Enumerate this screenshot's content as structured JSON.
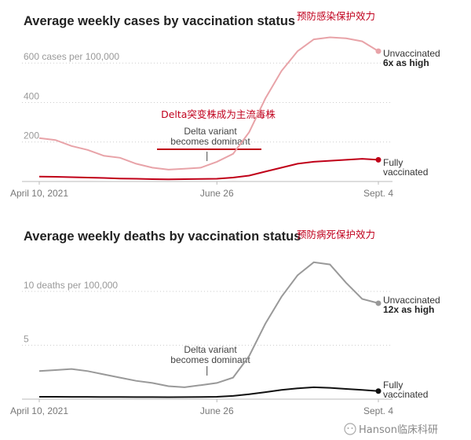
{
  "chart_data": [
    {
      "type": "line",
      "title": "Average weekly cases by vaccination status",
      "annotation_cn_top": "预防感染保护效力",
      "annotation_cn_delta": "Delta突变株成为主流毒株",
      "delta_annotation": [
        "Delta variant",
        "becomes dominant"
      ],
      "ylim": [
        0,
        760
      ],
      "y_ticks": [
        {
          "value": 200,
          "label": "200"
        },
        {
          "value": 400,
          "label": "400"
        },
        {
          "value": 600,
          "label": "600 cases per 100,000"
        }
      ],
      "x_ticks": [
        {
          "week": 0,
          "label": "April 10, 2021"
        },
        {
          "week": 11,
          "label": "June 26"
        },
        {
          "week": 21,
          "label": "Sept. 4"
        }
      ],
      "delta_week": 10,
      "series": [
        {
          "name": "Unvaccinated",
          "color": "#e8a3a8",
          "end_label": "Unvaccinated",
          "end_value_label": "6x as high",
          "values": [
            220,
            210,
            180,
            160,
            130,
            120,
            90,
            70,
            60,
            65,
            70,
            100,
            140,
            250,
            420,
            560,
            660,
            720,
            730,
            725,
            710,
            660
          ]
        },
        {
          "name": "Fully vaccinated",
          "color": "#c00018",
          "end_label": [
            "Fully",
            "vaccinated"
          ],
          "values": [
            25,
            24,
            22,
            20,
            18,
            15,
            14,
            12,
            11,
            12,
            13,
            14,
            20,
            30,
            50,
            70,
            90,
            100,
            105,
            110,
            115,
            110
          ]
        }
      ]
    },
    {
      "type": "line",
      "title": "Average weekly deaths by vaccination status",
      "annotation_cn_top": "预防病死保护效力",
      "delta_annotation": [
        "Delta variant",
        "becomes dominant"
      ],
      "ylim": [
        0,
        14
      ],
      "y_ticks": [
        {
          "value": 5,
          "label": "5"
        },
        {
          "value": 10,
          "label": "10 deaths per 100,000"
        }
      ],
      "x_ticks": [
        {
          "week": 0,
          "label": "April 10, 2021"
        },
        {
          "week": 11,
          "label": "June 26"
        },
        {
          "week": 21,
          "label": "Sept. 4"
        }
      ],
      "delta_week": 10,
      "series": [
        {
          "name": "Unvaccinated",
          "color": "#999999",
          "end_label": "Unvaccinated",
          "end_value_label": "12x as high",
          "values": [
            2.6,
            2.7,
            2.8,
            2.6,
            2.3,
            2.0,
            1.7,
            1.5,
            1.2,
            1.1,
            1.3,
            1.5,
            2.0,
            4.0,
            7.0,
            9.5,
            11.5,
            12.7,
            12.5,
            10.8,
            9.3,
            8.9
          ]
        },
        {
          "name": "Fully vaccinated",
          "color": "#111111",
          "end_label": [
            "Fully",
            "vaccinated"
          ],
          "values": [
            0.22,
            0.22,
            0.21,
            0.21,
            0.2,
            0.2,
            0.19,
            0.19,
            0.18,
            0.19,
            0.2,
            0.22,
            0.3,
            0.45,
            0.65,
            0.85,
            1.0,
            1.1,
            1.05,
            0.95,
            0.85,
            0.75
          ]
        }
      ]
    }
  ],
  "watermark": "Hanson临床科研"
}
